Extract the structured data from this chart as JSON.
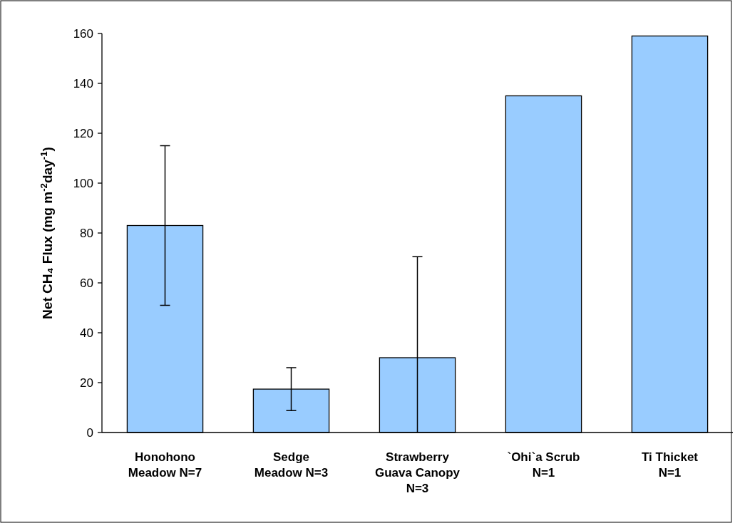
{
  "chart_data": {
    "type": "bar",
    "categories": [
      "Honohono\nMeadow N=7",
      "Sedge\nMeadow N=3",
      "Strawberry\nGuava Canopy\nN=3",
      "`Ohi`a Scrub\nN=1",
      "Ti Thicket\nN=1"
    ],
    "values": [
      83,
      17.4,
      30,
      135,
      159
    ],
    "errors": [
      32,
      8.6,
      [
        0,
        70.5
      ],
      null,
      null
    ],
    "color": "#99ccff",
    "ylabel": "Net CH₄ Flux (mg m$^{-2}$day$^{-1}$)",
    "ylim": [
      0,
      160
    ],
    "yticks": [
      0,
      20,
      40,
      60,
      80,
      100,
      120,
      140,
      160
    ],
    "grid": false
  }
}
